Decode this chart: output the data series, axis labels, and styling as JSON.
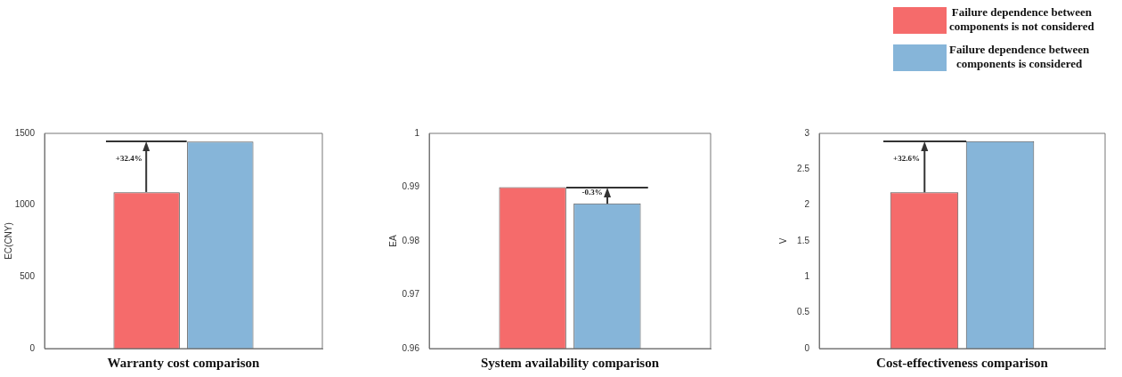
{
  "chart_data": [
    {
      "type": "bar",
      "categories": [
        null
      ],
      "series": [
        {
          "color": "#f56b6b",
          "values": [
            1090
          ]
        },
        {
          "color": "#86b5d9",
          "values": [
            1443
          ]
        }
      ],
      "ylabel": "EC(CNY)",
      "xlabel": "Warranty cost comparison",
      "ylim": [
        0,
        1500
      ],
      "yticks": [
        0,
        500,
        1000,
        1500
      ],
      "tick_labels": "y",
      "annotations": [
        "+32.4%"
      ]
    },
    {
      "type": "bar",
      "categories": [
        null
      ],
      "series": [
        {
          "color": "#f56b6b",
          "values": [
            0.99
          ]
        },
        {
          "color": "#86b5d9",
          "values": [
            0.987
          ]
        }
      ],
      "ylabel": "EA",
      "xlabel": "System availability comparison",
      "ylim": [
        0.96,
        1
      ],
      "yticks": [
        0.96,
        0.97,
        0.98,
        0.99,
        1
      ],
      "tick_labels": "y",
      "annotations": [
        "-0.3%"
      ]
    },
    {
      "type": "bar",
      "categories": [
        null
      ],
      "series": [
        {
          "name": "Failure dependence between components is not considered",
          "color": "#f56b6b",
          "values": [
            2.18
          ]
        },
        {
          "name": "Failure dependence between components is considered",
          "color": "#86b5d9",
          "values": [
            2.89
          ]
        }
      ],
      "ylabel": "V",
      "xlabel": "Cost-effectiveness comparison",
      "ylim": [
        0,
        3
      ],
      "yticks": [
        0,
        0.5,
        1,
        1.5,
        2,
        2.5,
        3
      ],
      "tick_labels": "y",
      "annotations": [
        "+32.6%"
      ],
      "legend": "top right"
    }
  ]
}
